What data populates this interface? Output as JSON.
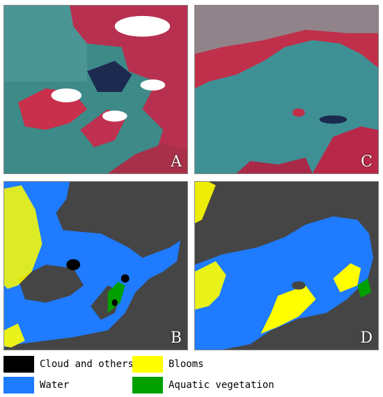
{
  "panels": [
    {
      "id": "A",
      "label": "A"
    },
    {
      "id": "C",
      "label": "C"
    },
    {
      "id": "B",
      "label": "B"
    },
    {
      "id": "D",
      "label": "D"
    }
  ],
  "legend": [
    {
      "label": "Cloud and others",
      "color": "#000000"
    },
    {
      "label": "Blooms",
      "color": "#ffff00"
    },
    {
      "label": "Water",
      "color": "#1f7bff"
    },
    {
      "label": "Aquatic vegetation",
      "color": "#00a000"
    }
  ],
  "colors": {
    "map_background": "#454545",
    "water": "#1f7bff",
    "blooms": "#ffff00",
    "vegetation": "#00a000",
    "cloud": "#000000",
    "satellite_water": "#3a8a8f",
    "satellite_land": "#d0304a",
    "satellite_cloud": "#ffffff"
  }
}
